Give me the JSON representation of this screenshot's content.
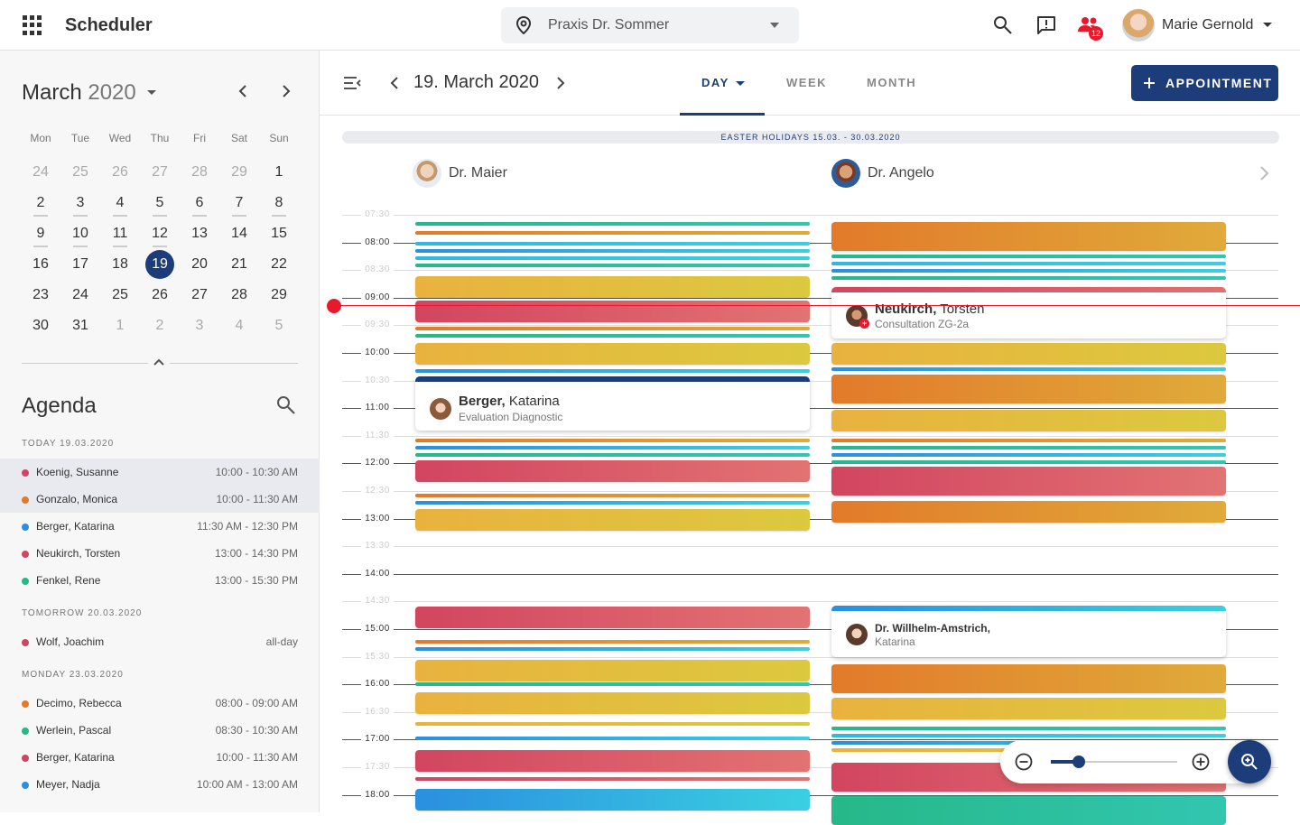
{
  "app": {
    "name": "Scheduler"
  },
  "location": {
    "name": "Praxis Dr. Sommer"
  },
  "user": {
    "name": "Marie Gernold",
    "notifications": "12"
  },
  "colors": {
    "accent": "#1c3d7a",
    "red": "#d24560",
    "orange": "#e27a2a",
    "yellow": "#e9b23e",
    "blue": "#2a8fe0",
    "green": "#26b888",
    "teal": "#3ad0e0",
    "now": "#e8192c"
  },
  "calendar": {
    "month": "March",
    "year": "2020",
    "weekdays": [
      "Mon",
      "Tue",
      "Wed",
      "Thu",
      "Fri",
      "Sat",
      "Sun"
    ],
    "weeks": [
      [
        "24",
        "25",
        "26",
        "27",
        "28",
        "29",
        "1"
      ],
      [
        "2",
        "3",
        "4",
        "5",
        "6",
        "7",
        "8"
      ],
      [
        "9",
        "10",
        "11",
        "12",
        "13",
        "14",
        "15"
      ],
      [
        "16",
        "17",
        "18",
        "19",
        "20",
        "21",
        "22"
      ],
      [
        "23",
        "24",
        "25",
        "26",
        "27",
        "28",
        "29"
      ],
      [
        "30",
        "31",
        "1",
        "2",
        "3",
        "4",
        "5"
      ]
    ],
    "selected": "19"
  },
  "agenda": {
    "title": "Agenda",
    "groups": [
      {
        "label": "TODAY 19.03.2020",
        "items": [
          {
            "name": "Koenig, Susanne",
            "time": "10:00 - 10:30 AM",
            "color": "#d24560"
          },
          {
            "name": "Gonzalo, Monica",
            "time": "10:00 - 11:30 AM",
            "color": "#e27a2a"
          },
          {
            "name": "Berger, Katarina",
            "time": "11:30 AM - 12:30 PM",
            "color": "#2a8fe0"
          },
          {
            "name": "Neukirch, Torsten",
            "time": "13:00 - 14:30 PM",
            "color": "#d24560"
          },
          {
            "name": "Fenkel, Rene",
            "time": "13:00 - 15:30 PM",
            "color": "#26b888"
          }
        ]
      },
      {
        "label": "TOMORROW 20.03.2020",
        "items": [
          {
            "name": "Wolf, Joachim",
            "time": "all-day",
            "color": "#d24560"
          }
        ]
      },
      {
        "label": "MONDAY 23.03.2020",
        "items": [
          {
            "name": "Decimo, Rebecca",
            "time": "08:00 - 09:00 AM",
            "color": "#e27a2a"
          },
          {
            "name": "Werlein, Pascal",
            "time": "08:30 - 10:30 AM",
            "color": "#26b888"
          },
          {
            "name": "Berger, Katarina",
            "time": "10:00 - 11:30 AM",
            "color": "#d24560"
          },
          {
            "name": "Meyer, Nadja",
            "time": "10:00 AM - 13:00 AM",
            "color": "#2a8fe0"
          }
        ]
      }
    ]
  },
  "main": {
    "date_title": "19. March 2020",
    "tabs": [
      {
        "label": "DAY",
        "active": true
      },
      {
        "label": "WEEK"
      },
      {
        "label": "MONTH"
      }
    ],
    "new_button": "APPOINTMENT",
    "holiday": "EASTER HOLIDAYS 15.03. - 30.03.2020",
    "resources": [
      "Dr. Maier",
      "Dr. Angelo"
    ],
    "hours": [
      "07:30",
      "08:00",
      "08:30",
      "09:00",
      "09:30",
      "10:00",
      "10:30",
      "11:00",
      "11:30",
      "12:00",
      "12:30",
      "13:00",
      "13:30",
      "14:00",
      "14:30",
      "15:00",
      "15:30",
      "16:00",
      "16:30",
      "17:00",
      "17:30",
      "18:00"
    ],
    "cards": [
      {
        "last": "Berger,",
        "first": "Katarina",
        "desc": "Evaluation Diagnostic"
      },
      {
        "last": "Neukirch,",
        "first": "Torsten",
        "desc": "Consultation ZG-2a"
      },
      {
        "last": "Dr. Willhelm-Amstrich,",
        "first": "Katarina",
        "desc": ""
      }
    ]
  },
  "zoom": {
    "level": 0.22
  }
}
